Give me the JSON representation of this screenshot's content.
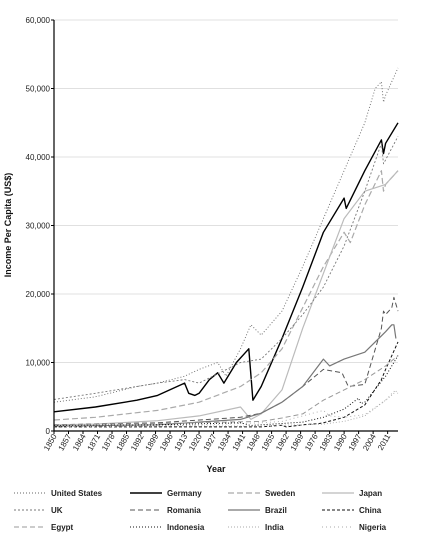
{
  "chart_data": {
    "type": "line",
    "title": "",
    "xlabel": "Year",
    "ylabel": "Income Per Capita (US$)",
    "xlim": [
      1850,
      2016
    ],
    "ylim": [
      0,
      60000
    ],
    "grid": true,
    "legend_position": "bottom",
    "x_ticks": [
      1850,
      1857,
      1864,
      1871,
      1878,
      1885,
      1892,
      1899,
      1906,
      1913,
      1920,
      1927,
      1934,
      1941,
      1948,
      1955,
      1962,
      1969,
      1976,
      1983,
      1990,
      1997,
      2004,
      2011
    ],
    "y_ticks": [
      {
        "value": 0,
        "label": "0"
      },
      {
        "value": 10000,
        "label": "10,000"
      },
      {
        "value": 20000,
        "label": "20,000"
      },
      {
        "value": 30000,
        "label": "30,000"
      },
      {
        "value": 40000,
        "label": "40,000"
      },
      {
        "value": 50000,
        "label": "50,000"
      },
      {
        "value": 60000,
        "label": "60,000"
      }
    ],
    "series": [
      {
        "name": "United States",
        "color": "#666666",
        "width": 0.9,
        "dash": "1,2",
        "x": [
          1850,
          1870,
          1890,
          1900,
          1913,
          1920,
          1929,
          1933,
          1940,
          1945,
          1950,
          1960,
          1970,
          1980,
          1990,
          2000,
          2005,
          2008,
          2009,
          2010,
          2016
        ],
        "y": [
          4200,
          5000,
          6500,
          7000,
          8000,
          9000,
          10000,
          8000,
          12000,
          15500,
          14000,
          17500,
          24000,
          31000,
          38000,
          45000,
          50000,
          51000,
          48000,
          49000,
          53000
        ]
      },
      {
        "name": "Germany",
        "color": "#000000",
        "width": 1.4,
        "dash": "",
        "x": [
          1850,
          1870,
          1890,
          1900,
          1913,
          1915,
          1918,
          1920,
          1925,
          1929,
          1932,
          1938,
          1944,
          1946,
          1950,
          1960,
          1970,
          1980,
          1990,
          1991,
          2000,
          2008,
          2009,
          2010,
          2016
        ],
        "y": [
          2800,
          3500,
          4500,
          5200,
          7000,
          5500,
          5200,
          5500,
          7500,
          8500,
          7000,
          10000,
          12000,
          4500,
          6500,
          13500,
          21000,
          29000,
          34000,
          32500,
          38000,
          42500,
          40500,
          42000,
          45000
        ]
      },
      {
        "name": "Sweden",
        "color": "#aaaaaa",
        "width": 1.2,
        "dash": "6,3",
        "x": [
          1850,
          1870,
          1900,
          1920,
          1940,
          1950,
          1960,
          1970,
          1980,
          1990,
          1993,
          2000,
          2008,
          2009,
          2010,
          2016
        ],
        "y": [
          1600,
          2000,
          3000,
          4200,
          6500,
          8500,
          12000,
          18000,
          24000,
          29000,
          27500,
          33000,
          38000,
          35000,
          36000,
          38000
        ]
      },
      {
        "name": "Japan",
        "color": "#bbbbbb",
        "width": 1.2,
        "dash": "",
        "x": [
          1850,
          1870,
          1900,
          1920,
          1940,
          1945,
          1950,
          1960,
          1970,
          1980,
          1990,
          2000,
          2010,
          2016
        ],
        "y": [
          900,
          1000,
          1500,
          2200,
          3500,
          1700,
          2500,
          6000,
          15000,
          23000,
          31000,
          35000,
          36000,
          38000
        ]
      },
      {
        "name": "UK",
        "color": "#777777",
        "width": 0.9,
        "dash": "2,2",
        "x": [
          1850,
          1870,
          1900,
          1913,
          1920,
          1940,
          1950,
          1960,
          1970,
          1980,
          1990,
          2000,
          2008,
          2009,
          2016
        ],
        "y": [
          4600,
          5500,
          7000,
          7500,
          7000,
          10000,
          10500,
          13500,
          17000,
          21000,
          27000,
          35000,
          42000,
          39000,
          43000
        ]
      },
      {
        "name": "Romania",
        "color": "#555555",
        "width": 1.0,
        "dash": "5,3",
        "x": [
          1850,
          1900,
          1940,
          1950,
          1960,
          1970,
          1980,
          1989,
          1992,
          2000,
          2008,
          2009,
          2010,
          2013,
          2014,
          2016
        ],
        "y": [
          900,
          1200,
          2000,
          2600,
          4200,
          6500,
          9000,
          8500,
          6500,
          6800,
          15000,
          17500,
          17000,
          18000,
          19500,
          17500
        ]
      },
      {
        "name": "Brazil",
        "color": "#777777",
        "width": 1.2,
        "dash": "",
        "x": [
          1850,
          1900,
          1940,
          1950,
          1960,
          1970,
          1980,
          1983,
          1990,
          2000,
          2010,
          2013,
          2014,
          2015
        ],
        "y": [
          700,
          900,
          1700,
          2600,
          4200,
          6500,
          10500,
          9500,
          10500,
          11500,
          14500,
          15500,
          15500,
          13500
        ]
      },
      {
        "name": "China",
        "color": "#111111",
        "width": 1.0,
        "dash": "3,2",
        "x": [
          1850,
          1900,
          1950,
          1960,
          1962,
          1970,
          1978,
          1980,
          1990,
          2000,
          2008,
          2010,
          2016
        ],
        "y": [
          600,
          600,
          600,
          850,
          600,
          900,
          1100,
          1200,
          2000,
          3800,
          7500,
          9000,
          13000
        ]
      },
      {
        "name": "Egypt",
        "color": "#999999",
        "width": 1.0,
        "dash": "5,3",
        "x": [
          1850,
          1900,
          1950,
          1960,
          1970,
          1980,
          1990,
          2000,
          2010,
          2016
        ],
        "y": [
          900,
          1100,
          1400,
          1900,
          2500,
          4500,
          6000,
          7500,
          9500,
          11000
        ]
      },
      {
        "name": "Indonesia",
        "color": "#111111",
        "width": 1.0,
        "dash": "1,2",
        "x": [
          1850,
          1900,
          1940,
          1945,
          1950,
          1960,
          1970,
          1980,
          1990,
          1997,
          1998,
          2000,
          2010,
          2016
        ],
        "y": [
          800,
          900,
          1200,
          800,
          900,
          1100,
          1300,
          2000,
          3200,
          4800,
          4000,
          4200,
          8000,
          11000
        ]
      },
      {
        "name": "India",
        "color": "#aaaaaa",
        "width": 0.9,
        "dash": "1,2",
        "x": [
          1850,
          1900,
          1950,
          1960,
          1970,
          1980,
          1990,
          2000,
          2010,
          2016
        ],
        "y": [
          700,
          750,
          700,
          850,
          900,
          1000,
          1400,
          2200,
          4500,
          6000
        ]
      },
      {
        "name": "Nigeria",
        "color": "#aaaaaa",
        "width": 0.9,
        "dash": "1,3",
        "x": [
          1850,
          1900,
          1950,
          1960,
          1970,
          1980,
          1983,
          1990,
          2000,
          2010,
          2014,
          2016
        ],
        "y": [
          600,
          700,
          1200,
          1400,
          2200,
          3000,
          2200,
          2000,
          2400,
          4500,
          5800,
          5500
        ]
      }
    ],
    "legend": [
      [
        "United States",
        "Germany",
        "Sweden",
        "Japan"
      ],
      [
        "UK",
        "Romania",
        "Brazil",
        "China"
      ],
      [
        "Egypt",
        "Indonesia",
        "India",
        "Nigeria"
      ]
    ]
  }
}
